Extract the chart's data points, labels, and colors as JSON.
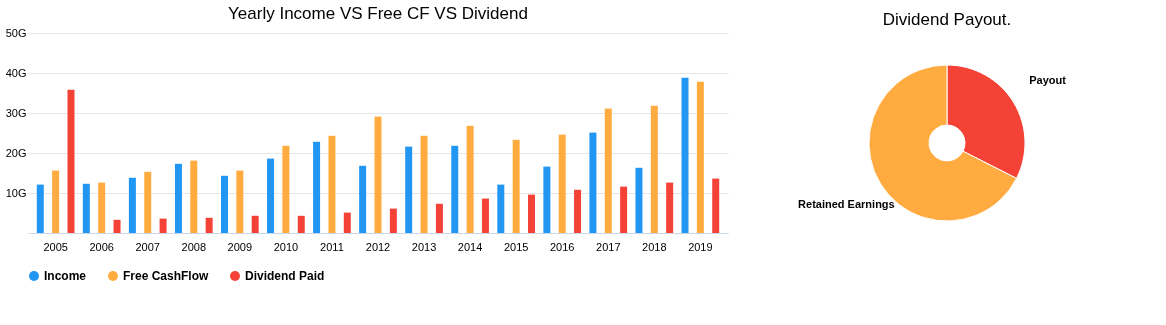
{
  "chart_data": [
    {
      "type": "bar",
      "title": "Yearly Income VS Free CF VS Dividend",
      "categories": [
        "2005",
        "2006",
        "2007",
        "2008",
        "2009",
        "2010",
        "2011",
        "2012",
        "2013",
        "2014",
        "2015",
        "2016",
        "2017",
        "2018",
        "2019"
      ],
      "series": [
        {
          "name": "Income",
          "color": "#2196f3",
          "values": [
            12.1,
            12.3,
            13.8,
            17.3,
            14.3,
            18.6,
            22.8,
            16.8,
            21.6,
            21.8,
            12.1,
            16.6,
            25.1,
            16.3,
            38.8
          ]
        },
        {
          "name": "Free CashFlow",
          "color": "#ffab40",
          "values": [
            15.6,
            12.6,
            15.3,
            18.1,
            15.6,
            21.8,
            24.3,
            29.1,
            24.3,
            26.8,
            23.3,
            24.6,
            31.1,
            31.8,
            37.8
          ]
        },
        {
          "name": "Dividend Paid",
          "color": "#f44336",
          "values": [
            35.8,
            3.3,
            3.6,
            3.8,
            4.3,
            4.3,
            5.1,
            6.1,
            7.3,
            8.6,
            9.6,
            10.8,
            11.6,
            12.6,
            13.6
          ]
        }
      ],
      "ylim": [
        0,
        50
      ],
      "yticks": [
        {
          "value": 0,
          "label": null
        },
        {
          "value": 10,
          "label": "10G"
        },
        {
          "value": 20,
          "label": "20G"
        },
        {
          "value": 30,
          "label": "30G"
        },
        {
          "value": 40,
          "label": "40G"
        },
        {
          "value": 50,
          "label": "50G"
        }
      ],
      "grid": "y",
      "legend": "bottom"
    },
    {
      "type": "donut",
      "title": "Dividend Payout.",
      "categories": [
        "Payout",
        "Retained Earnings"
      ],
      "values": [
        32.5,
        67.5
      ],
      "colors": [
        "#f44336",
        "#ffab40"
      ]
    }
  ]
}
